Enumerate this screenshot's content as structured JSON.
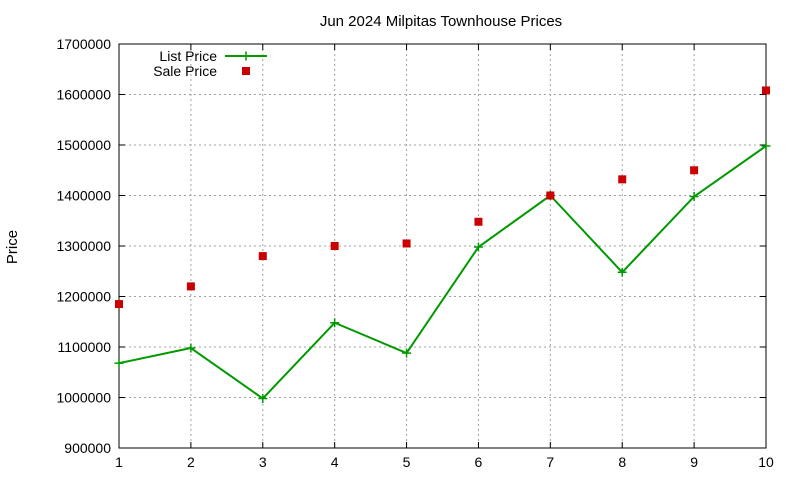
{
  "chart_data": {
    "type": "line",
    "title": "Jun 2024 Milpitas Townhouse Prices",
    "xlabel": "",
    "ylabel": "Price",
    "x": [
      1,
      2,
      3,
      4,
      5,
      6,
      7,
      8,
      9,
      10
    ],
    "xlim": [
      1,
      10
    ],
    "ylim": [
      900000,
      1700000
    ],
    "x_ticks": [
      1,
      2,
      3,
      4,
      5,
      6,
      7,
      8,
      9,
      10
    ],
    "y_ticks": [
      900000,
      1000000,
      1100000,
      1200000,
      1300000,
      1400000,
      1500000,
      1600000,
      1700000
    ],
    "grid": true,
    "legend_position": "top-left",
    "series": [
      {
        "name": "List Price",
        "style": "lines+points",
        "marker": "plus",
        "color": "#009900",
        "values": [
          1068000,
          1098000,
          998000,
          1148000,
          1088000,
          1298000,
          1400000,
          1248000,
          1398000,
          1498000
        ]
      },
      {
        "name": "Sale Price",
        "style": "points",
        "marker": "square",
        "color": "#cc0000",
        "values": [
          1185000,
          1220000,
          1280000,
          1300000,
          1305000,
          1348000,
          1400000,
          1432000,
          1450000,
          1608000
        ]
      }
    ]
  }
}
